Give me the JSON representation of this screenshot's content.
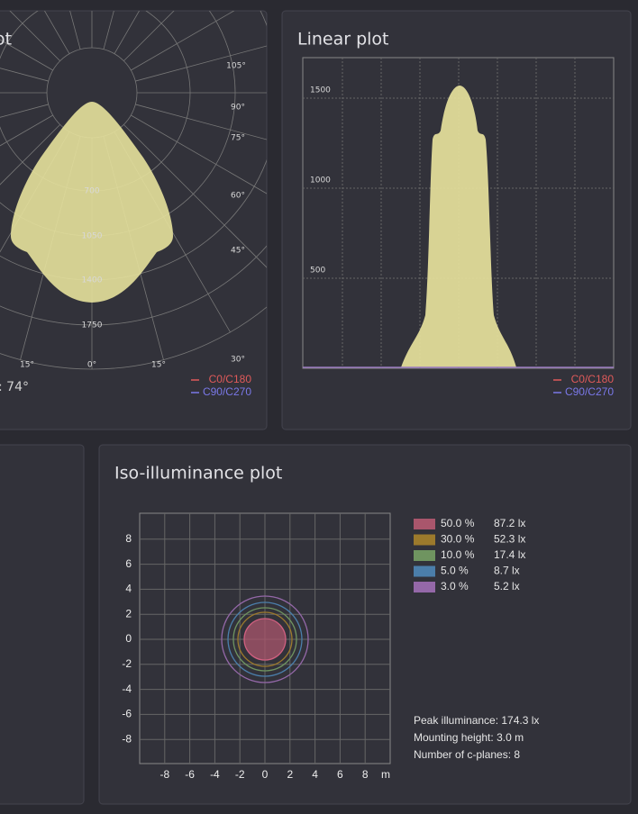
{
  "polar_panel": {
    "title": "ot",
    "caption": ": 74°",
    "radial_labels": [
      "700",
      "1050",
      "1400",
      "1750"
    ],
    "angle_labels": [
      "105°",
      "90°",
      "75°",
      "60°",
      "45°",
      "30°",
      "15°",
      "0°",
      "15°"
    ],
    "legend": [
      "C0/C180",
      "C90/C270"
    ]
  },
  "linear_panel": {
    "title": "Linear plot",
    "yticks": [
      500,
      1000,
      1500
    ],
    "legend": [
      "C0/C180",
      "C90/C270"
    ]
  },
  "iso_panel": {
    "title": "Iso-illuminance plot",
    "yticks": [
      8,
      6,
      4,
      2,
      0,
      -2,
      -4,
      -6,
      -8
    ],
    "xticks": [
      -8,
      -6,
      -4,
      -2,
      0,
      2,
      4,
      6,
      8
    ],
    "x_unit": "m",
    "legend": [
      {
        "percent": "50.0 %",
        "lux": "87.2 lx",
        "color": "#a9566c"
      },
      {
        "percent": "30.0 %",
        "lux": "52.3 lx",
        "color": "#9c7a2c"
      },
      {
        "percent": "10.0 %",
        "lux": "17.4 lx",
        "color": "#6f9460"
      },
      {
        "percent": "5.0 %",
        "lux": "8.7 lx",
        "color": "#4b7eaa"
      },
      {
        "percent": "3.0 %",
        "lux": "5.2 lx",
        "color": "#9468a8"
      }
    ],
    "info": [
      "Peak illuminance: 174.3 lx",
      "Mounting height: 3.0 m",
      "Number of c-planes: 8"
    ]
  }
}
